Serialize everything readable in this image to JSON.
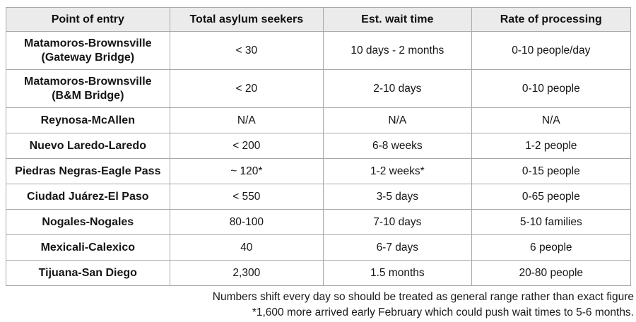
{
  "colors": {
    "header_bg": "#ebebeb",
    "border": "#a9a9a9",
    "outer_border": "#8f8f8f",
    "text": "#151515",
    "background": "#ffffff"
  },
  "chart_data": {
    "type": "table",
    "title": "",
    "columns": [
      "Point of entry",
      "Total asylum seekers",
      "Est. wait time",
      "Rate of processing"
    ],
    "rows": [
      [
        "Matamoros-Brownsville\n(Gateway Bridge)",
        "< 30",
        "10 days - 2 months",
        "0-10 people/day"
      ],
      [
        "Matamoros-Brownsville\n(B&M Bridge)",
        "< 20",
        "2-10 days",
        "0-10 people"
      ],
      [
        "Reynosa-McAllen",
        "N/A",
        "N/A",
        "N/A"
      ],
      [
        "Nuevo Laredo-Laredo",
        "< 200",
        "6-8 weeks",
        "1-2 people"
      ],
      [
        "Piedras Negras-Eagle Pass",
        "~ 120*",
        "1-2 weeks*",
        "0-15 people"
      ],
      [
        "Ciudad Juárez-El Paso",
        "< 550",
        "3-5 days",
        "0-65 people"
      ],
      [
        "Nogales-Nogales",
        "80-100",
        "7-10 days",
        "5-10 families"
      ],
      [
        "Mexicali-Calexico",
        "40",
        "6-7 days",
        "6 people"
      ],
      [
        "Tijuana-San Diego",
        "2,300",
        "1.5 months",
        "20-80 people"
      ]
    ],
    "footnotes": [
      "Numbers shift every day so should be treated as general range rather than exact figure",
      "*1,600 more arrived early February which could push wait times to 5-6 months."
    ],
    "layout_hints": {
      "header_background": "#ebebeb",
      "grid": true,
      "first_column_bold": true,
      "footnotes_alignment": "right"
    }
  }
}
